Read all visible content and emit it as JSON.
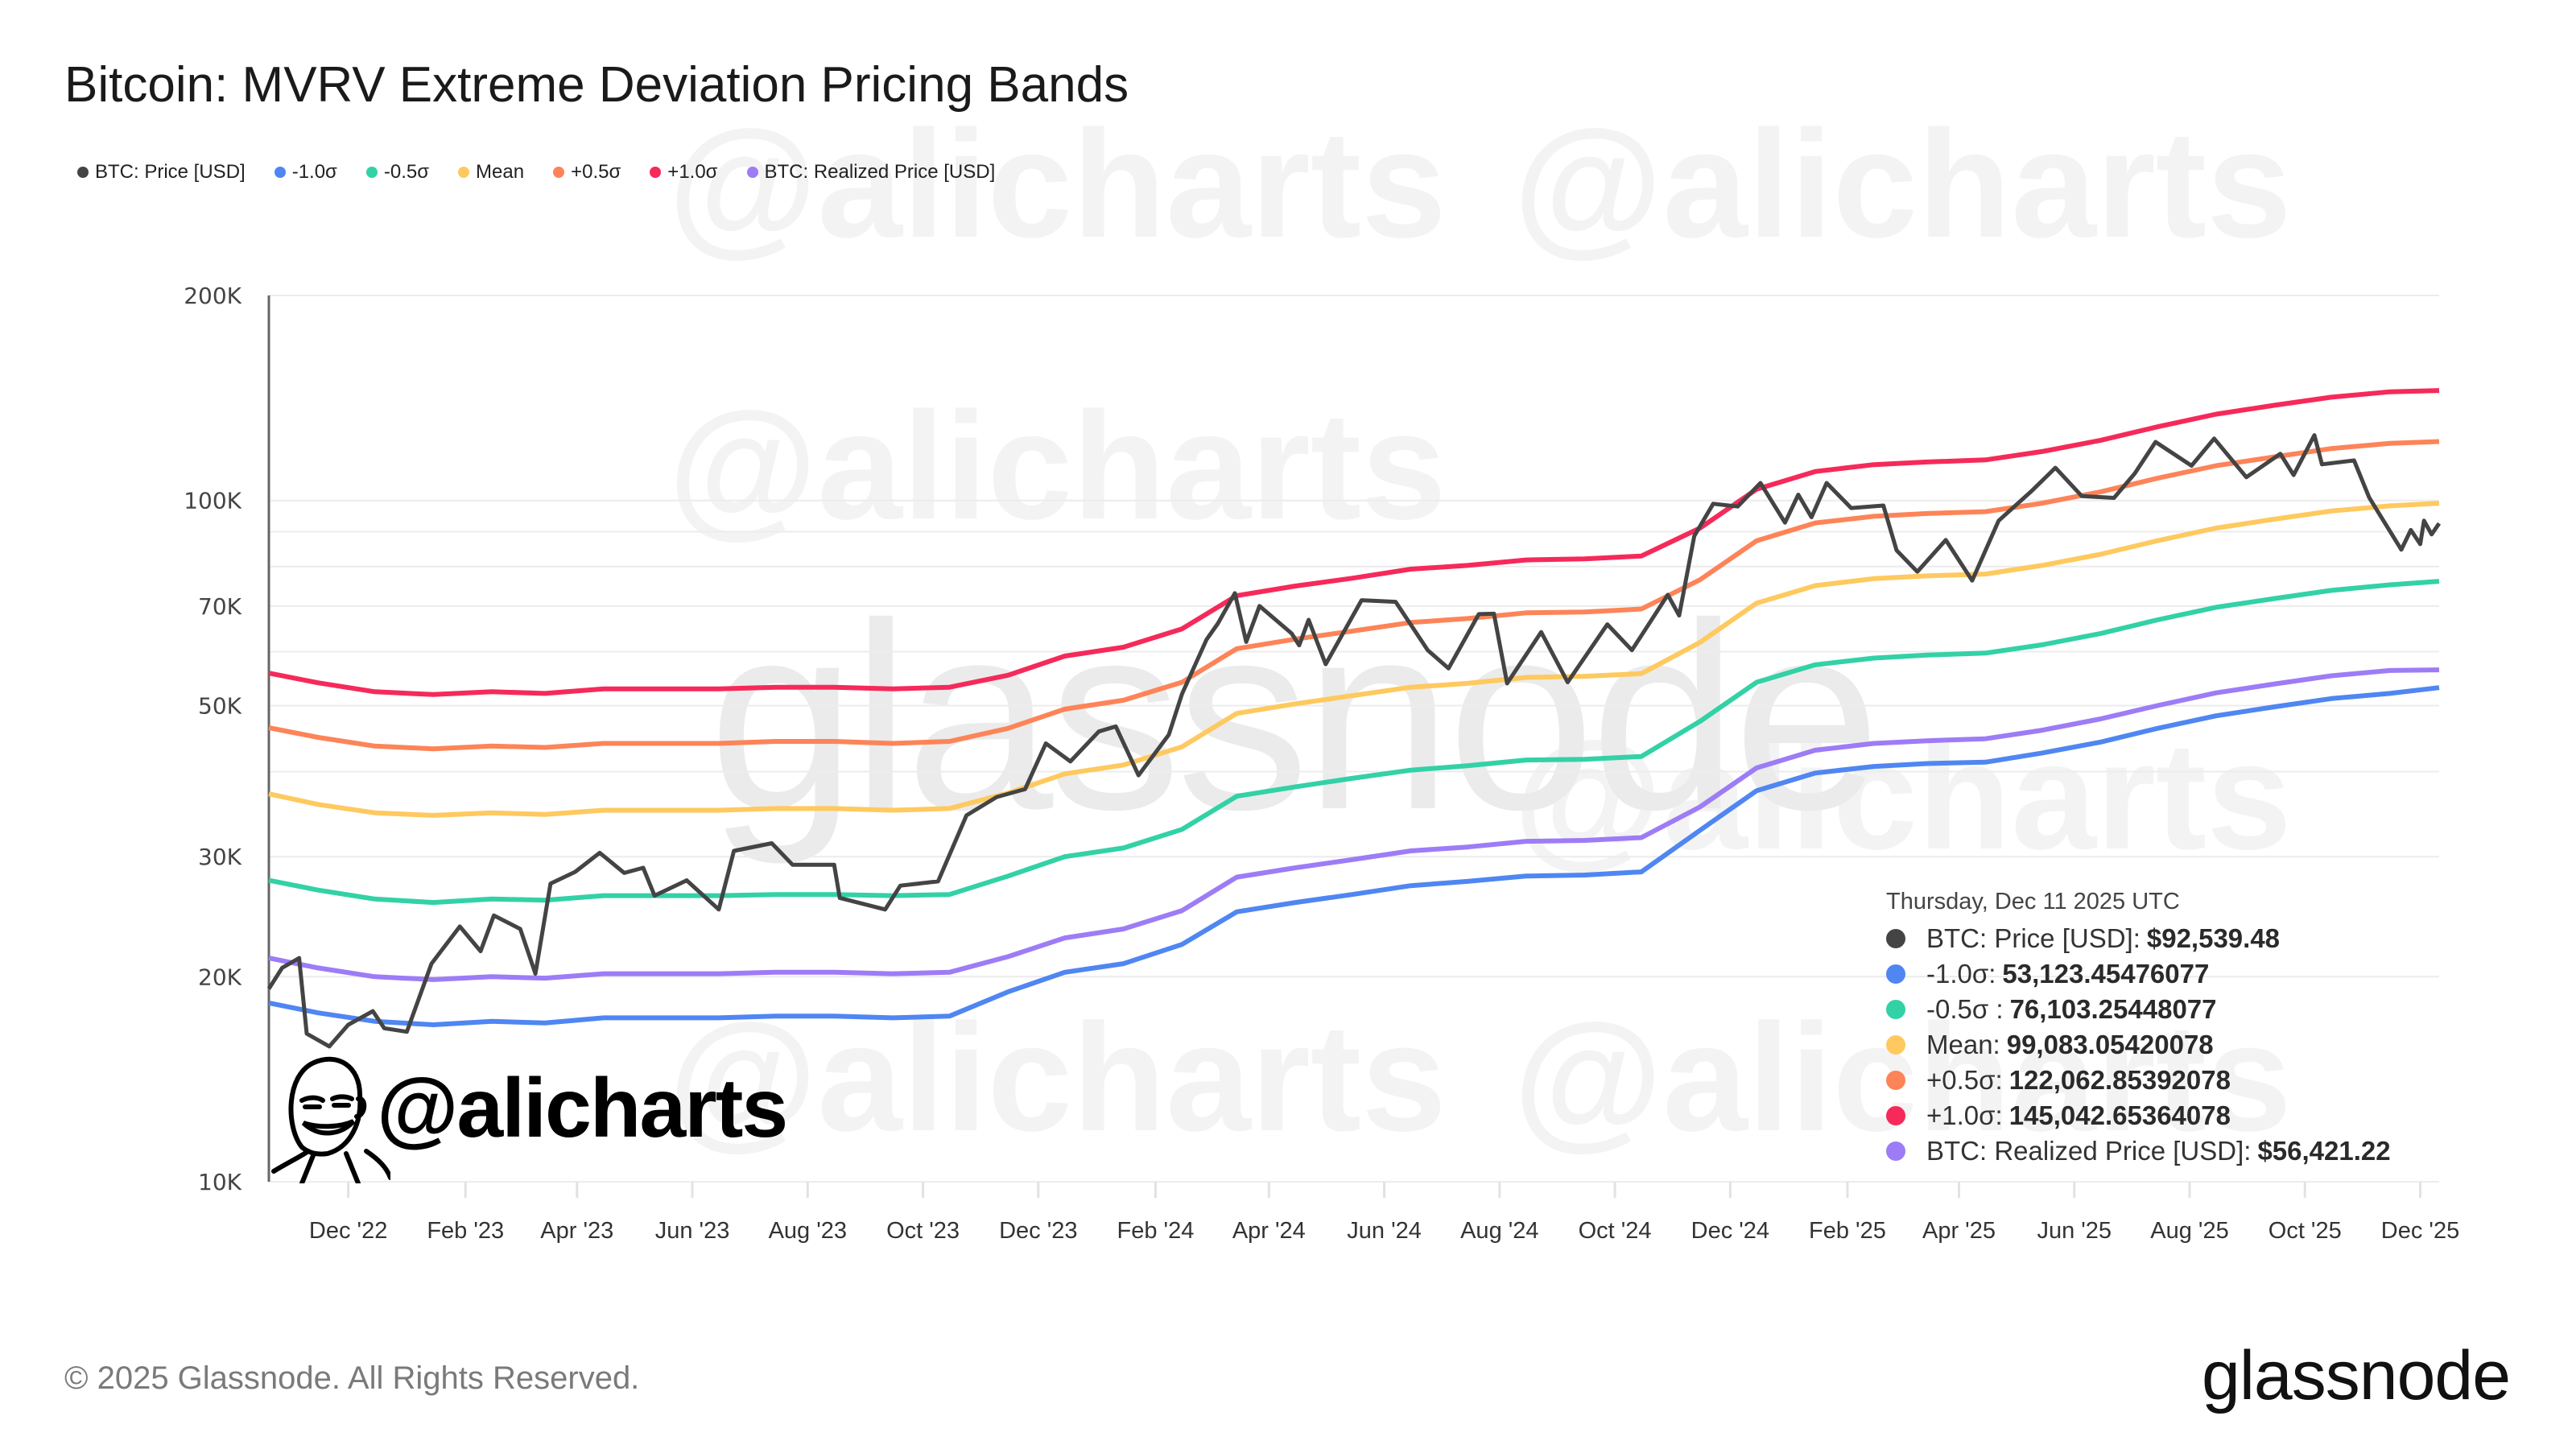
{
  "title": "Bitcoin: MVRV Extreme Deviation Pricing Bands",
  "watermarks": {
    "brand": "glassnode",
    "handle": "@alicharts"
  },
  "colors": {
    "price": "#444444",
    "minus1": "#4f86f2",
    "minus05": "#33d1a6",
    "mean": "#fec95f",
    "plus05": "#fd8458",
    "plus1": "#f52a5a",
    "realized": "#9d7cf6"
  },
  "legend": [
    {
      "key": "price",
      "label": "BTC: Price [USD]"
    },
    {
      "key": "minus1",
      "label": "-1.0σ"
    },
    {
      "key": "minus05",
      "label": "-0.5σ"
    },
    {
      "key": "mean",
      "label": "Mean"
    },
    {
      "key": "plus05",
      "label": "+0.5σ"
    },
    {
      "key": "plus1",
      "label": "+1.0σ"
    },
    {
      "key": "realized",
      "label": "BTC: Realized Price [USD]"
    }
  ],
  "tooltip": {
    "date": "Thursday, Dec 11 2025 UTC",
    "rows": [
      {
        "key": "price",
        "label": "BTC: Price [USD]:",
        "value": "$92,539.48"
      },
      {
        "key": "minus1",
        "label": "-1.0σ:",
        "value": "53,123.45476077"
      },
      {
        "key": "minus05",
        "label": "-0.5σ :",
        "value": "76,103.25448077"
      },
      {
        "key": "mean",
        "label": "Mean:",
        "value": "99,083.05420078"
      },
      {
        "key": "plus05",
        "label": "+0.5σ:",
        "value": "122,062.85392078"
      },
      {
        "key": "plus1",
        "label": "+1.0σ:",
        "value": "145,042.65364078"
      },
      {
        "key": "realized",
        "label": "BTC: Realized Price [USD]:",
        "value": "$56,421.22"
      }
    ]
  },
  "footer": "© 2025 Glassnode. All Rights Reserved.",
  "brand": "glassnode",
  "handle": "@alicharts",
  "chart_data": {
    "type": "line",
    "title": "Bitcoin: MVRV Extreme Deviation Pricing Bands",
    "y_scale": "log",
    "ylim": [
      10000,
      200000
    ],
    "xlim": [
      "2022-10-20",
      "2025-12-11"
    ],
    "grid": true,
    "legend_position": "top-left",
    "y_ticks": [
      {
        "value": 200000,
        "label": "200K"
      },
      {
        "value": 100000,
        "label": "100K"
      },
      {
        "value": 70000,
        "label": "70K"
      },
      {
        "value": 50000,
        "label": "50K"
      },
      {
        "value": 30000,
        "label": "30K"
      },
      {
        "value": 20000,
        "label": "20K"
      },
      {
        "value": 10000,
        "label": "10K"
      }
    ],
    "y_gridlines": [
      200000,
      100000,
      90000,
      80000,
      70000,
      60000,
      50000,
      40000,
      30000,
      20000,
      10000
    ],
    "x_ticks": [
      {
        "date": "2022-12-01",
        "label": "Dec '22"
      },
      {
        "date": "2023-02-01",
        "label": "Feb '23"
      },
      {
        "date": "2023-04-01",
        "label": "Apr '23"
      },
      {
        "date": "2023-06-01",
        "label": "Jun '23"
      },
      {
        "date": "2023-08-01",
        "label": "Aug '23"
      },
      {
        "date": "2023-10-01",
        "label": "Oct '23"
      },
      {
        "date": "2023-12-01",
        "label": "Dec '23"
      },
      {
        "date": "2024-02-01",
        "label": "Feb '24"
      },
      {
        "date": "2024-04-01",
        "label": "Apr '24"
      },
      {
        "date": "2024-06-01",
        "label": "Jun '24"
      },
      {
        "date": "2024-08-01",
        "label": "Aug '24"
      },
      {
        "date": "2024-10-01",
        "label": "Oct '24"
      },
      {
        "date": "2024-12-01",
        "label": "Dec '24"
      },
      {
        "date": "2025-02-01",
        "label": "Feb '25"
      },
      {
        "date": "2025-04-01",
        "label": "Apr '25"
      },
      {
        "date": "2025-06-01",
        "label": "Jun '25"
      },
      {
        "date": "2025-08-01",
        "label": "Aug '25"
      },
      {
        "date": "2025-10-01",
        "label": "Oct '25"
      },
      {
        "date": "2025-12-01",
        "label": "Dec '25"
      }
    ],
    "price": {
      "name": "BTC: Price [USD]",
      "points": [
        [
          "2022-10-20",
          19200
        ],
        [
          "2022-10-27",
          20600
        ],
        [
          "2022-11-05",
          21300
        ],
        [
          "2022-11-09",
          16500
        ],
        [
          "2022-11-21",
          15800
        ],
        [
          "2022-12-01",
          17000
        ],
        [
          "2022-12-14",
          17800
        ],
        [
          "2022-12-20",
          16800
        ],
        [
          "2023-01-01",
          16600
        ],
        [
          "2023-01-14",
          20900
        ],
        [
          "2023-01-29",
          23700
        ],
        [
          "2023-02-09",
          21800
        ],
        [
          "2023-02-16",
          24600
        ],
        [
          "2023-03-02",
          23500
        ],
        [
          "2023-03-10",
          20200
        ],
        [
          "2023-03-18",
          27400
        ],
        [
          "2023-03-31",
          28500
        ],
        [
          "2023-04-13",
          30400
        ],
        [
          "2023-04-26",
          28400
        ],
        [
          "2023-05-06",
          28900
        ],
        [
          "2023-05-12",
          26300
        ],
        [
          "2023-05-29",
          27700
        ],
        [
          "2023-06-15",
          25100
        ],
        [
          "2023-06-23",
          30600
        ],
        [
          "2023-07-13",
          31400
        ],
        [
          "2023-07-24",
          29200
        ],
        [
          "2023-08-15",
          29200
        ],
        [
          "2023-08-18",
          26100
        ],
        [
          "2023-09-11",
          25100
        ],
        [
          "2023-09-19",
          27200
        ],
        [
          "2023-10-09",
          27600
        ],
        [
          "2023-10-24",
          34500
        ],
        [
          "2023-11-09",
          36700
        ],
        [
          "2023-11-24",
          37700
        ],
        [
          "2023-12-05",
          44000
        ],
        [
          "2023-12-18",
          41400
        ],
        [
          "2024-01-02",
          45800
        ],
        [
          "2024-01-11",
          46600
        ],
        [
          "2024-01-23",
          39500
        ],
        [
          "2024-02-08",
          45300
        ],
        [
          "2024-02-15",
          52000
        ],
        [
          "2024-02-28",
          62500
        ],
        [
          "2024-03-05",
          66000
        ],
        [
          "2024-03-14",
          73100
        ],
        [
          "2024-03-20",
          62000
        ],
        [
          "2024-03-27",
          70000
        ],
        [
          "2024-04-13",
          63800
        ],
        [
          "2024-04-17",
          61300
        ],
        [
          "2024-04-22",
          66800
        ],
        [
          "2024-05-01",
          57500
        ],
        [
          "2024-05-20",
          71400
        ],
        [
          "2024-06-07",
          71000
        ],
        [
          "2024-06-24",
          60300
        ],
        [
          "2024-07-05",
          56700
        ],
        [
          "2024-07-21",
          68100
        ],
        [
          "2024-07-29",
          68200
        ],
        [
          "2024-08-05",
          53900
        ],
        [
          "2024-08-23",
          64100
        ],
        [
          "2024-09-06",
          54100
        ],
        [
          "2024-09-27",
          65800
        ],
        [
          "2024-10-10",
          60300
        ],
        [
          "2024-10-29",
          72700
        ],
        [
          "2024-11-04",
          67800
        ],
        [
          "2024-11-12",
          88700
        ],
        [
          "2024-11-22",
          98900
        ],
        [
          "2024-12-05",
          98000
        ],
        [
          "2024-12-17",
          106100
        ],
        [
          "2024-12-30",
          92800
        ],
        [
          "2025-01-06",
          102000
        ],
        [
          "2025-01-13",
          94500
        ],
        [
          "2025-01-21",
          106100
        ],
        [
          "2025-02-03",
          97500
        ],
        [
          "2025-02-20",
          98300
        ],
        [
          "2025-02-27",
          84500
        ],
        [
          "2025-03-10",
          78600
        ],
        [
          "2025-03-25",
          87500
        ],
        [
          "2025-04-08",
          76300
        ],
        [
          "2025-04-22",
          93400
        ],
        [
          "2025-05-09",
          103000
        ],
        [
          "2025-05-22",
          111700
        ],
        [
          "2025-06-05",
          101500
        ],
        [
          "2025-06-22",
          100900
        ],
        [
          "2025-07-03",
          109600
        ],
        [
          "2025-07-14",
          121900
        ],
        [
          "2025-08-02",
          112500
        ],
        [
          "2025-08-14",
          123300
        ],
        [
          "2025-08-31",
          108200
        ],
        [
          "2025-09-18",
          117100
        ],
        [
          "2025-09-25",
          109000
        ],
        [
          "2025-10-06",
          124700
        ],
        [
          "2025-10-10",
          113000
        ],
        [
          "2025-10-27",
          114500
        ],
        [
          "2025-11-04",
          101000
        ],
        [
          "2025-11-21",
          84700
        ],
        [
          "2025-11-26",
          90500
        ],
        [
          "2025-12-01",
          86300
        ],
        [
          "2025-12-03",
          93400
        ],
        [
          "2025-12-07",
          89200
        ],
        [
          "2025-12-11",
          92539.48
        ]
      ]
    },
    "band_dates": [
      "2022-10-20",
      "2022-11-15",
      "2022-12-15",
      "2023-01-15",
      "2023-02-15",
      "2023-03-15",
      "2023-04-15",
      "2023-05-15",
      "2023-06-15",
      "2023-07-15",
      "2023-08-15",
      "2023-09-15",
      "2023-10-15",
      "2023-11-15",
      "2023-12-15",
      "2024-01-15",
      "2024-02-15",
      "2024-03-15",
      "2024-04-15",
      "2024-05-15",
      "2024-06-15",
      "2024-07-15",
      "2024-08-15",
      "2024-09-15",
      "2024-10-15",
      "2024-11-15",
      "2024-12-15",
      "2025-01-15",
      "2025-02-15",
      "2025-03-15",
      "2025-04-15",
      "2025-05-15",
      "2025-06-15",
      "2025-07-15",
      "2025-08-15",
      "2025-09-15",
      "2025-10-15",
      "2025-11-15",
      "2025-12-11"
    ],
    "series": [
      {
        "key": "plus1",
        "name": "+1.0σ",
        "values": [
          55800,
          54000,
          52400,
          51900,
          52400,
          52100,
          52900,
          52900,
          52900,
          53200,
          53200,
          52900,
          53200,
          55400,
          59100,
          60900,
          64800,
          72500,
          74900,
          76900,
          79300,
          80300,
          81800,
          82100,
          82900,
          91100,
          103900,
          110300,
          112900,
          113900,
          114700,
          118000,
          122600,
          128300,
          133900,
          138000,
          141800,
          144400,
          145043
        ]
      },
      {
        "key": "plus05",
        "name": "+0.5σ",
        "values": [
          46400,
          44900,
          43600,
          43200,
          43600,
          43400,
          44000,
          44000,
          44000,
          44300,
          44300,
          44000,
          44300,
          46300,
          49400,
          50900,
          54100,
          60600,
          62600,
          64300,
          66200,
          67100,
          68400,
          68600,
          69300,
          76500,
          87300,
          92700,
          94800,
          95700,
          96300,
          99100,
          103000,
          107800,
          112500,
          115900,
          119200,
          121300,
          122063
        ]
      },
      {
        "key": "mean",
        "name": "Mean",
        "values": [
          37100,
          35800,
          34800,
          34500,
          34800,
          34600,
          35100,
          35100,
          35100,
          35300,
          35300,
          35100,
          35300,
          37200,
          39700,
          40900,
          43500,
          48700,
          50300,
          51700,
          53200,
          53900,
          55000,
          55200,
          55700,
          61900,
          70700,
          75000,
          76800,
          77500,
          78000,
          80300,
          83400,
          87300,
          91100,
          93900,
          96500,
          98200,
          99083
        ]
      },
      {
        "key": "minus05",
        "name": "-0.5σ",
        "values": [
          27700,
          26800,
          26000,
          25700,
          26000,
          25900,
          26300,
          26300,
          26300,
          26400,
          26400,
          26300,
          26400,
          28100,
          30000,
          30900,
          32900,
          36800,
          38000,
          39100,
          40200,
          40800,
          41600,
          41700,
          42100,
          47400,
          54100,
          57400,
          58700,
          59300,
          59700,
          61400,
          63800,
          66800,
          69700,
          71800,
          73800,
          75200,
          76103
        ]
      },
      {
        "key": "minus1",
        "name": "-1.0σ",
        "values": [
          18300,
          17700,
          17200,
          17000,
          17200,
          17100,
          17400,
          17400,
          17400,
          17500,
          17500,
          17400,
          17500,
          19000,
          20300,
          20900,
          22300,
          24900,
          25700,
          26400,
          27200,
          27600,
          28100,
          28200,
          28500,
          32800,
          37500,
          39800,
          40700,
          41100,
          41300,
          42600,
          44200,
          46300,
          48300,
          49800,
          51200,
          52100,
          53123
        ]
      },
      {
        "key": "realized",
        "name": "BTC: Realized Price [USD]",
        "values": [
          21300,
          20600,
          20000,
          19800,
          20000,
          19900,
          20200,
          20200,
          20200,
          20300,
          20300,
          20200,
          20300,
          21400,
          22800,
          23500,
          25000,
          28000,
          28900,
          29700,
          30600,
          31000,
          31600,
          31700,
          32000,
          35500,
          40500,
          43000,
          44000,
          44400,
          44700,
          46000,
          47800,
          50000,
          52200,
          53800,
          55300,
          56300,
          56421.22
        ]
      }
    ]
  }
}
